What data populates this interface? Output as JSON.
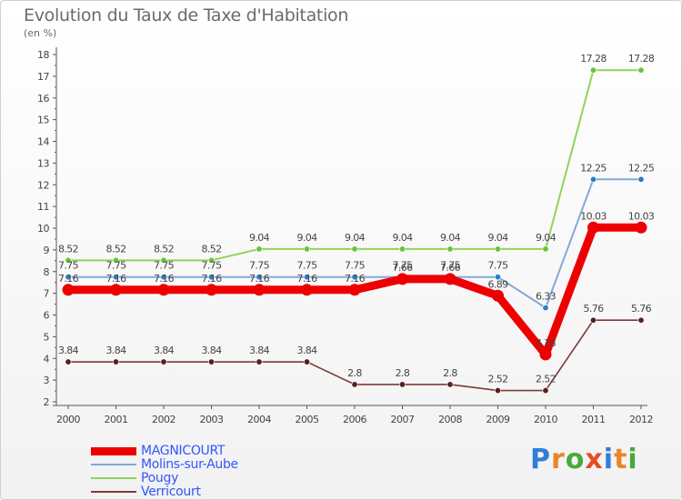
{
  "title": "Evolution du Taux de Taxe d'Habitation",
  "unit_label": "(en %)",
  "logo": {
    "letters": [
      {
        "ch": "P",
        "color": "#2e7fd8"
      },
      {
        "ch": "r",
        "color": "#e9862a"
      },
      {
        "ch": "o",
        "color": "#49a93a"
      },
      {
        "ch": "x",
        "color": "#e54d23"
      },
      {
        "ch": "i",
        "color": "#2e7fd8"
      },
      {
        "ch": "t",
        "color": "#e9862a"
      },
      {
        "ch": "i",
        "color": "#49a93a"
      }
    ]
  },
  "chart_data": {
    "type": "line",
    "title": "Evolution du Taux de Taxe d'Habitation",
    "ylabel": "(en %)",
    "xlabel": "",
    "ylim": [
      2,
      18
    ],
    "yticks": [
      2,
      3,
      4,
      5,
      6,
      7,
      8,
      9,
      10,
      11,
      12,
      13,
      14,
      15,
      16,
      17,
      18
    ],
    "categories": [
      "2000",
      "2001",
      "2002",
      "2003",
      "2004",
      "2005",
      "2006",
      "2007",
      "2008",
      "2009",
      "2010",
      "2011",
      "2012"
    ],
    "grid": false,
    "legend_position": "bottom-left",
    "series": [
      {
        "name": "Pougy",
        "color": "#8fd45a",
        "marker": "#6cc23a",
        "width": 2,
        "values": [
          8.52,
          8.52,
          8.52,
          8.52,
          9.04,
          9.04,
          9.04,
          9.04,
          9.04,
          9.04,
          9.04,
          17.28,
          17.28
        ],
        "labels": [
          "8.52",
          "8.52",
          "8.52",
          "8.52",
          "9.04",
          "9.04",
          "9.04",
          "9.04",
          "9.04",
          "9.04",
          "9.04",
          "17.28",
          "17.28"
        ]
      },
      {
        "name": "Molins-sur-Aube",
        "color": "#82a9d6",
        "marker": "#2d7cc8",
        "width": 2,
        "values": [
          7.75,
          7.75,
          7.75,
          7.75,
          7.75,
          7.75,
          7.75,
          7.75,
          7.75,
          7.75,
          6.33,
          12.25,
          12.25
        ],
        "labels": [
          "7.75",
          "7.75",
          "7.75",
          "7.75",
          "7.75",
          "7.75",
          "7.75",
          "7.75",
          "7.75",
          "7.75",
          "6.33",
          "12.25",
          "12.25"
        ]
      },
      {
        "name": "Verricourt",
        "color": "#7a3a3a",
        "marker": "#5a1e1e",
        "width": 1.6,
        "values": [
          3.84,
          3.84,
          3.84,
          3.84,
          3.84,
          3.84,
          2.8,
          2.8,
          2.8,
          2.52,
          2.52,
          5.76,
          5.76
        ],
        "labels": [
          "3.84",
          "3.84",
          "3.84",
          "3.84",
          "3.84",
          "3.84",
          "2.8",
          "2.8",
          "2.8",
          "2.52",
          "2.52",
          "5.76",
          "5.76"
        ]
      },
      {
        "name": "MAGNICOURT",
        "color": "#ee0000",
        "marker": "#ee0000",
        "width": 9,
        "values": [
          7.16,
          7.16,
          7.16,
          7.16,
          7.16,
          7.16,
          7.16,
          7.66,
          7.66,
          6.89,
          4.18,
          10.03,
          10.03
        ],
        "labels": [
          "7.16",
          "7.16",
          "7.16",
          "7.16",
          "7.16",
          "7.16",
          "7.16",
          "7.66",
          "7.66",
          "6.89",
          "4.18",
          "10.03",
          "10.03"
        ]
      }
    ],
    "legend": [
      {
        "name": "MAGNICOURT",
        "color": "#ee0000",
        "width": 9
      },
      {
        "name": "Molins-sur-Aube",
        "color": "#82a9d6",
        "width": 2
      },
      {
        "name": "Pougy",
        "color": "#8fd45a",
        "width": 2
      },
      {
        "name": "Verricourt",
        "color": "#7a3a3a",
        "width": 2
      }
    ]
  }
}
